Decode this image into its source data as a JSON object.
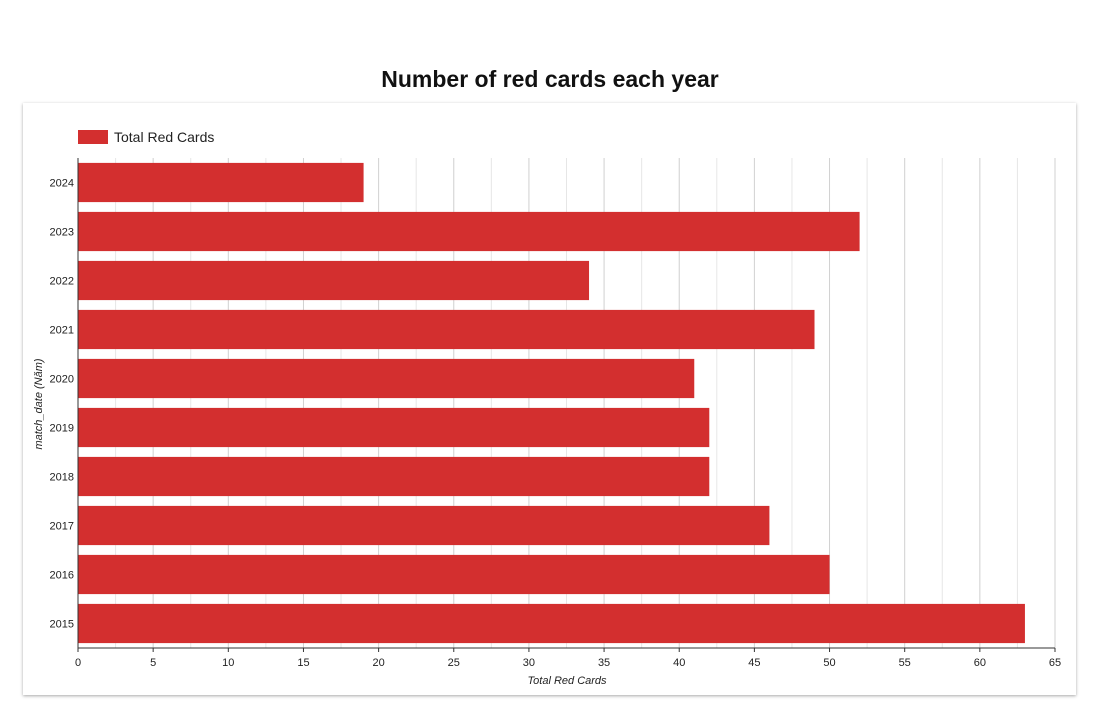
{
  "title": "Number of red cards each year",
  "colors": {
    "bar": "#d32f2f",
    "grid": "#d0d0d0",
    "axis": "#333333"
  },
  "chart_data": {
    "type": "bar",
    "orientation": "horizontal",
    "categories": [
      "2024",
      "2023",
      "2022",
      "2021",
      "2020",
      "2019",
      "2018",
      "2017",
      "2016",
      "2015"
    ],
    "series": [
      {
        "name": "Total Red Cards",
        "values": [
          19,
          52,
          34,
          49,
          41,
          42,
          42,
          46,
          50,
          63
        ]
      }
    ],
    "xlabel": "Total Red Cards",
    "ylabel": "match_date (Năm)",
    "xlim": [
      0,
      65
    ],
    "xticks": [
      0,
      5,
      10,
      15,
      20,
      25,
      30,
      35,
      40,
      45,
      50,
      55,
      60,
      65
    ],
    "grid": true,
    "legend_position": "top-left"
  }
}
